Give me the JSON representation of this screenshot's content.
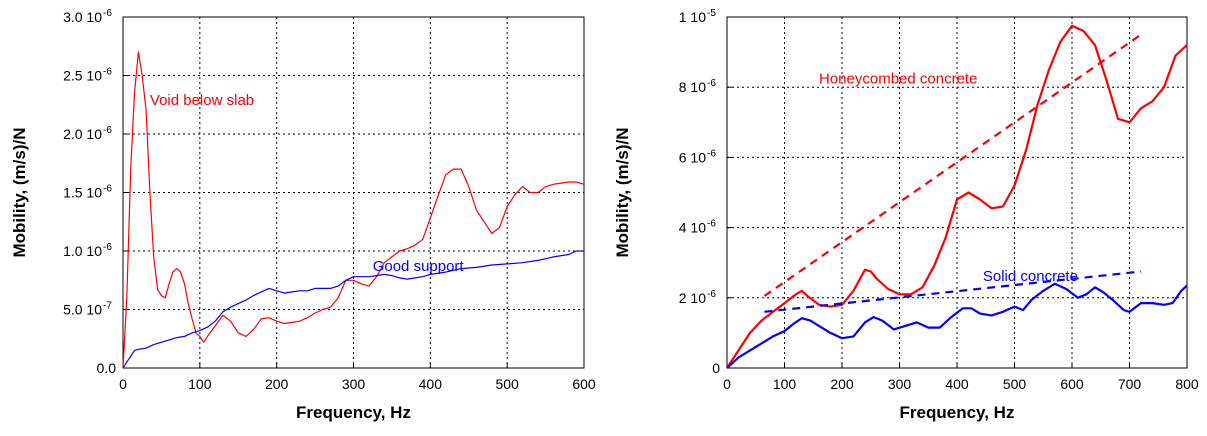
{
  "chart_data": [
    {
      "type": "line",
      "xlabel": "Frequency, Hz",
      "ylabel": "Mobility, (m/s)/N",
      "xlim": [
        0,
        600
      ],
      "ylim": [
        0,
        3e-06
      ],
      "grid": true,
      "xticks": [
        {
          "v": 0,
          "label": "0"
        },
        {
          "v": 100,
          "label": "100"
        },
        {
          "v": 200,
          "label": "200"
        },
        {
          "v": 300,
          "label": "300"
        },
        {
          "v": 400,
          "label": "400"
        },
        {
          "v": 500,
          "label": "500"
        },
        {
          "v": 600,
          "label": "600"
        }
      ],
      "yticks": [
        {
          "v": 0,
          "label": "0.0",
          "exp": ""
        },
        {
          "v": 5e-07,
          "label": "5.0 10",
          "exp": "-7"
        },
        {
          "v": 1e-06,
          "label": "1.0 10",
          "exp": "-6"
        },
        {
          "v": 1.5e-06,
          "label": "1.5 10",
          "exp": "-6"
        },
        {
          "v": 2e-06,
          "label": "2.0 10",
          "exp": "-6"
        },
        {
          "v": 2.5e-06,
          "label": "2.5 10",
          "exp": "-6"
        },
        {
          "v": 3e-06,
          "label": "3.0 10",
          "exp": "-6"
        }
      ],
      "annotations": [
        {
          "text": "Void below slab",
          "x": 35,
          "y": 2.25e-06,
          "color": "#ff0000"
        },
        {
          "text": "Good support",
          "x": 325,
          "y": 8.3e-07,
          "color": "#0000ff"
        }
      ],
      "series": [
        {
          "color": "#ff0000",
          "width": 1.2,
          "dash": "",
          "x": [
            0,
            5,
            10,
            15,
            20,
            25,
            30,
            35,
            40,
            45,
            50,
            55,
            60,
            65,
            70,
            75,
            80,
            85,
            90,
            95,
            100,
            105,
            110,
            120,
            130,
            140,
            150,
            160,
            170,
            180,
            190,
            200,
            210,
            220,
            230,
            240,
            250,
            260,
            270,
            280,
            290,
            300,
            310,
            320,
            330,
            340,
            350,
            360,
            370,
            380,
            390,
            400,
            410,
            420,
            430,
            440,
            450,
            460,
            470,
            480,
            490,
            500,
            510,
            520,
            530,
            540,
            550,
            560,
            570,
            580,
            590,
            600
          ],
          "y": [
            0.0,
            6e-07,
            1.7e-06,
            2.35e-06,
            2.7e-06,
            2.5e-06,
            2.2e-06,
            1.5e-06,
            9.5e-07,
            6.7e-07,
            6.2e-07,
            6e-07,
            7.2e-07,
            8.2e-07,
            8.5e-07,
            8.2e-07,
            7.2e-07,
            5.5e-07,
            4.2e-07,
            3e-07,
            2.7e-07,
            2.2e-07,
            2.7e-07,
            3.6e-07,
            4.5e-07,
            4e-07,
            3e-07,
            2.7e-07,
            3.3e-07,
            4.2e-07,
            4.3e-07,
            4e-07,
            3.8e-07,
            3.9e-07,
            4e-07,
            4.3e-07,
            4.7e-07,
            5e-07,
            5.2e-07,
            6e-07,
            7.5e-07,
            7.5e-07,
            7.2e-07,
            7e-07,
            7.8e-07,
            9e-07,
            9.5e-07,
            1e-06,
            1.02e-06,
            1.05e-06,
            1.1e-06,
            1.28e-06,
            1.47e-06,
            1.65e-06,
            1.7e-06,
            1.7e-06,
            1.55e-06,
            1.35e-06,
            1.25e-06,
            1.15e-06,
            1.2e-06,
            1.38e-06,
            1.48e-06,
            1.55e-06,
            1.5e-06,
            1.5e-06,
            1.55e-06,
            1.57e-06,
            1.58e-06,
            1.59e-06,
            1.59e-06,
            1.57e-06
          ]
        },
        {
          "color": "#0000ff",
          "width": 1.2,
          "dash": "",
          "x": [
            0,
            5,
            10,
            15,
            20,
            30,
            40,
            50,
            60,
            70,
            80,
            90,
            100,
            110,
            120,
            130,
            140,
            150,
            160,
            170,
            180,
            190,
            200,
            210,
            220,
            230,
            240,
            250,
            260,
            270,
            280,
            290,
            300,
            310,
            320,
            330,
            340,
            350,
            360,
            370,
            380,
            390,
            400,
            420,
            440,
            460,
            480,
            500,
            520,
            540,
            560,
            580,
            590,
            600
          ],
          "y": [
            0.0,
            5e-08,
            1e-07,
            1.5e-07,
            1.6e-07,
            1.7e-07,
            2e-07,
            2.2e-07,
            2.4e-07,
            2.6e-07,
            2.7e-07,
            3e-07,
            3.2e-07,
            3.5e-07,
            4e-07,
            4.8e-07,
            5.2e-07,
            5.5e-07,
            5.8e-07,
            6.2e-07,
            6.5e-07,
            6.8e-07,
            6.6e-07,
            6.4e-07,
            6.5e-07,
            6.6e-07,
            6.6e-07,
            6.8e-07,
            6.8e-07,
            6.8e-07,
            7e-07,
            7.5e-07,
            7.8e-07,
            7.8e-07,
            7.8e-07,
            7.9e-07,
            8e-07,
            7.9e-07,
            7.7e-07,
            7.6e-07,
            7.7e-07,
            7.8e-07,
            8e-07,
            8.2e-07,
            8.5e-07,
            8.6e-07,
            8.8e-07,
            8.9e-07,
            9e-07,
            9.2e-07,
            9.5e-07,
            9.7e-07,
            1e-06,
            1e-06
          ]
        }
      ]
    },
    {
      "type": "line",
      "xlabel": "Frequency, Hz",
      "ylabel": "Mobility, (m/s)/N",
      "xlim": [
        0,
        800
      ],
      "ylim": [
        0,
        1e-05
      ],
      "grid": true,
      "xticks": [
        {
          "v": 0,
          "label": "0"
        },
        {
          "v": 100,
          "label": "100"
        },
        {
          "v": 200,
          "label": "200"
        },
        {
          "v": 300,
          "label": "300"
        },
        {
          "v": 400,
          "label": "400"
        },
        {
          "v": 500,
          "label": "500"
        },
        {
          "v": 600,
          "label": "600"
        },
        {
          "v": 700,
          "label": "700"
        },
        {
          "v": 800,
          "label": "800"
        }
      ],
      "yticks": [
        {
          "v": 0,
          "label": "0",
          "exp": ""
        },
        {
          "v": 2e-06,
          "label": "2 10",
          "exp": "-6"
        },
        {
          "v": 4e-06,
          "label": "4 10",
          "exp": "-6"
        },
        {
          "v": 6e-06,
          "label": "6 10",
          "exp": "-6"
        },
        {
          "v": 8e-06,
          "label": "8 10",
          "exp": "-6"
        },
        {
          "v": 1e-05,
          "label": "1 10",
          "exp": "-5"
        }
      ],
      "annotations": [
        {
          "text": "Honeycombed concrete",
          "x": 160,
          "y": 8.1e-06,
          "color": "#ff0000"
        },
        {
          "text": "Solid concrete",
          "x": 445,
          "y": 2.48e-06,
          "color": "#0000ff"
        }
      ],
      "series": [
        {
          "color": "#ff0000",
          "width": 2.2,
          "dash": "",
          "x": [
            0,
            20,
            40,
            60,
            80,
            100,
            120,
            130,
            140,
            160,
            180,
            200,
            220,
            240,
            250,
            260,
            280,
            300,
            320,
            340,
            360,
            380,
            400,
            420,
            440,
            460,
            480,
            500,
            520,
            540,
            560,
            580,
            600,
            620,
            640,
            660,
            680,
            700,
            720,
            740,
            760,
            780,
            800
          ],
          "y": [
            0.0,
            5e-07,
            1e-06,
            1.35e-06,
            1.6e-06,
            1.85e-06,
            2.1e-06,
            2.2e-06,
            2.05e-06,
            1.8e-06,
            1.75e-06,
            1.8e-06,
            2.2e-06,
            2.8e-06,
            2.75e-06,
            2.55e-06,
            2.25e-06,
            2.1e-06,
            2.1e-06,
            2.3e-06,
            2.9e-06,
            3.7e-06,
            4.8e-06,
            5e-06,
            4.8e-06,
            4.55e-06,
            4.6e-06,
            5.2e-06,
            6.2e-06,
            7.5e-06,
            8.5e-06,
            9.3e-06,
            9.75e-06,
            9.6e-06,
            9.2e-06,
            8.2e-06,
            7.1e-06,
            7e-06,
            7.4e-06,
            7.6e-06,
            8e-06,
            8.9e-06,
            9.2e-06
          ]
        },
        {
          "color": "#0000ff",
          "width": 2.2,
          "dash": "",
          "x": [
            0,
            20,
            40,
            60,
            80,
            100,
            115,
            130,
            145,
            160,
            180,
            200,
            220,
            240,
            255,
            270,
            290,
            310,
            330,
            350,
            370,
            390,
            410,
            425,
            440,
            460,
            480,
            500,
            515,
            530,
            550,
            570,
            590,
            610,
            625,
            640,
            655,
            670,
            690,
            700,
            720,
            740,
            760,
            775,
            790,
            800
          ],
          "y": [
            0.0,
            3e-07,
            5e-07,
            7e-07,
            9e-07,
            1.05e-06,
            1.25e-06,
            1.42e-06,
            1.35e-06,
            1.2e-06,
            1e-06,
            8.5e-07,
            9e-07,
            1.3e-06,
            1.45e-06,
            1.35e-06,
            1.1e-06,
            1.2e-06,
            1.3e-06,
            1.15e-06,
            1.15e-06,
            1.45e-06,
            1.7e-06,
            1.7e-06,
            1.55e-06,
            1.5e-06,
            1.6e-06,
            1.75e-06,
            1.65e-06,
            1.95e-06,
            2.2e-06,
            2.4e-06,
            2.25e-06,
            2e-06,
            2.1e-06,
            2.3e-06,
            2.15e-06,
            1.95e-06,
            1.65e-06,
            1.6e-06,
            1.85e-06,
            1.85e-06,
            1.8e-06,
            1.85e-06,
            2.2e-06,
            2.35e-06
          ]
        },
        {
          "color": "#ff0000",
          "width": 2.2,
          "dash": "8 6",
          "x": [
            65,
            720
          ],
          "y": [
            2.05e-06,
            9.5e-06
          ]
        },
        {
          "color": "#0000ff",
          "width": 2.2,
          "dash": "8 6",
          "x": [
            65,
            720
          ],
          "y": [
            1.6e-06,
            2.75e-06
          ]
        }
      ]
    }
  ]
}
